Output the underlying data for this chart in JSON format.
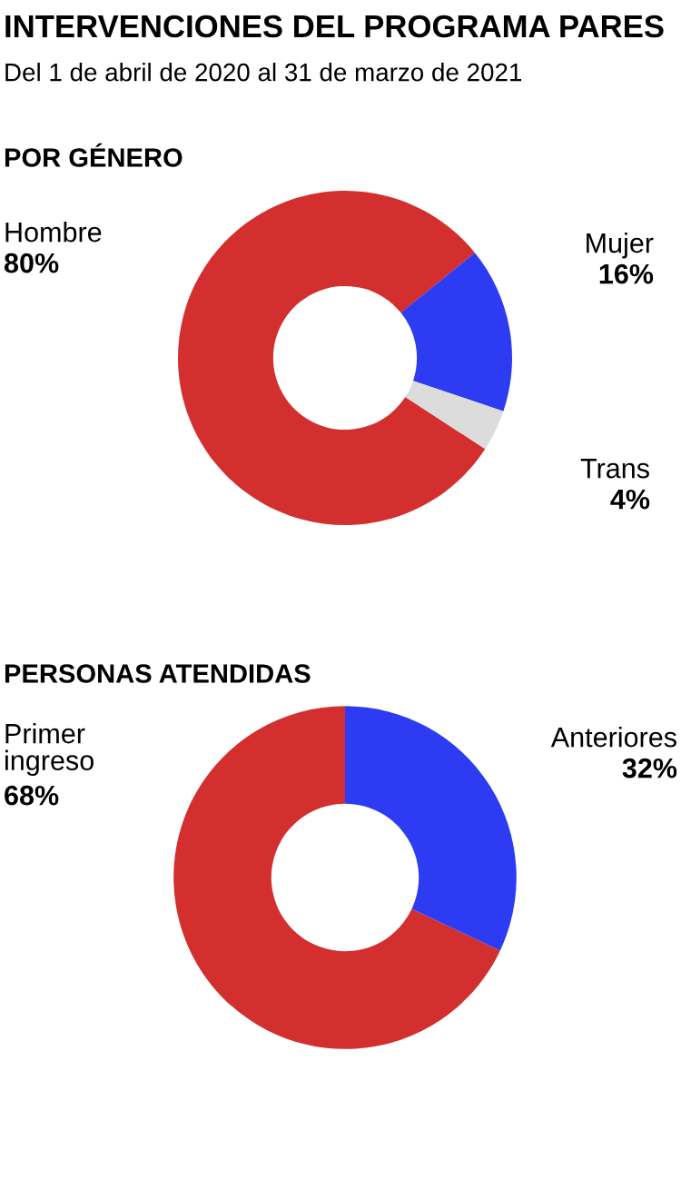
{
  "chart_data": [
    {
      "type": "other",
      "title": "INTERVENCIONES DEL PROGRAMA PARES",
      "subtitle": "Del 1 de abril de 2020 al 31 de marzo de 2021"
    },
    {
      "type": "donut",
      "title": "POR GÉNERO",
      "categories": [
        "Hombre",
        "Mujer",
        "Trans"
      ],
      "values": [
        80,
        16,
        4
      ],
      "colors": [
        "#d32f2f",
        "#2d3cf2",
        "#dcdcdc"
      ],
      "value_labels": [
        "80%",
        "16%",
        "4%"
      ]
    },
    {
      "type": "donut",
      "title": "PERSONAS ATENDIDAS",
      "categories": [
        "Primer ingreso",
        "Anteriores"
      ],
      "values": [
        68,
        32
      ],
      "colors": [
        "#d32f2f",
        "#2d3cf2"
      ],
      "value_labels": [
        "68%",
        "32%"
      ]
    }
  ]
}
